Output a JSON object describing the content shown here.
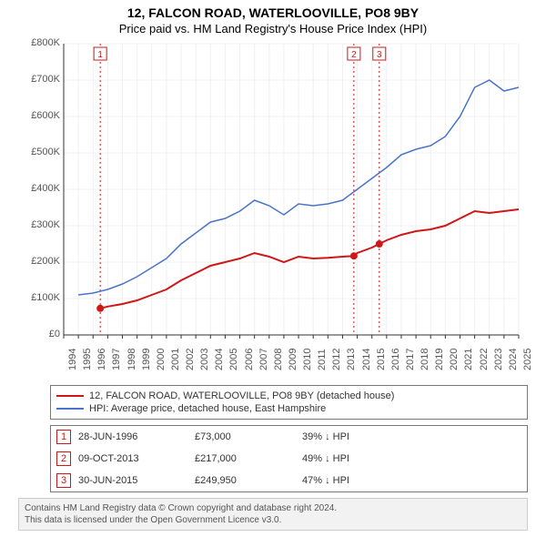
{
  "title_line1": "12, FALCON ROAD, WATERLOOVILLE, PO8 9BY",
  "title_line2": "Price paid vs. HM Land Registry's House Price Index (HPI)",
  "chart": {
    "type": "line",
    "background_color": "#ffffff",
    "grid_color": "#f0f0f0",
    "axis_color": "#333333",
    "xmin": 1994,
    "xmax": 2025,
    "ymin": 0,
    "ymax": 800000,
    "ytick_step": 100000,
    "yticks": [
      "£0",
      "£100K",
      "£200K",
      "£300K",
      "£400K",
      "£500K",
      "£600K",
      "£700K",
      "£800K"
    ],
    "xticks": [
      1994,
      1995,
      1996,
      1997,
      1998,
      1999,
      2000,
      2001,
      2002,
      2003,
      2004,
      2005,
      2006,
      2007,
      2008,
      2009,
      2010,
      2011,
      2012,
      2013,
      2014,
      2015,
      2016,
      2017,
      2018,
      2019,
      2020,
      2021,
      2022,
      2023,
      2024,
      2025
    ],
    "series": [
      {
        "name": "property",
        "label": "12, FALCON ROAD, WATERLOOVILLE, PO8 9BY (detached house)",
        "color": "#d01717",
        "line_width": 2,
        "data": [
          [
            1996.49,
            73000
          ],
          [
            1997,
            78000
          ],
          [
            1998,
            85000
          ],
          [
            1999,
            95000
          ],
          [
            2000,
            110000
          ],
          [
            2001,
            125000
          ],
          [
            2002,
            150000
          ],
          [
            2003,
            170000
          ],
          [
            2004,
            190000
          ],
          [
            2005,
            200000
          ],
          [
            2006,
            210000
          ],
          [
            2007,
            225000
          ],
          [
            2008,
            215000
          ],
          [
            2009,
            200000
          ],
          [
            2010,
            215000
          ],
          [
            2011,
            210000
          ],
          [
            2012,
            212000
          ],
          [
            2013,
            215000
          ],
          [
            2013.77,
            217000
          ],
          [
            2014,
            225000
          ],
          [
            2015,
            240000
          ],
          [
            2015.5,
            249950
          ],
          [
            2016,
            260000
          ],
          [
            2017,
            275000
          ],
          [
            2018,
            285000
          ],
          [
            2019,
            290000
          ],
          [
            2020,
            300000
          ],
          [
            2021,
            320000
          ],
          [
            2022,
            340000
          ],
          [
            2023,
            335000
          ],
          [
            2024,
            340000
          ],
          [
            2025,
            345000
          ]
        ]
      },
      {
        "name": "hpi",
        "label": "HPI: Average price, detached house, East Hampshire",
        "color": "#4a74c9",
        "line_width": 1.5,
        "data": [
          [
            1995,
            110000
          ],
          [
            1996,
            115000
          ],
          [
            1997,
            125000
          ],
          [
            1998,
            140000
          ],
          [
            1999,
            160000
          ],
          [
            2000,
            185000
          ],
          [
            2001,
            210000
          ],
          [
            2002,
            250000
          ],
          [
            2003,
            280000
          ],
          [
            2004,
            310000
          ],
          [
            2005,
            320000
          ],
          [
            2006,
            340000
          ],
          [
            2007,
            370000
          ],
          [
            2008,
            355000
          ],
          [
            2009,
            330000
          ],
          [
            2010,
            360000
          ],
          [
            2011,
            355000
          ],
          [
            2012,
            360000
          ],
          [
            2013,
            370000
          ],
          [
            2014,
            400000
          ],
          [
            2015,
            430000
          ],
          [
            2016,
            460000
          ],
          [
            2017,
            495000
          ],
          [
            2018,
            510000
          ],
          [
            2019,
            520000
          ],
          [
            2020,
            545000
          ],
          [
            2021,
            600000
          ],
          [
            2022,
            680000
          ],
          [
            2023,
            700000
          ],
          [
            2024,
            670000
          ],
          [
            2025,
            680000
          ]
        ]
      }
    ],
    "markers": [
      {
        "n": "1",
        "x": 1996.49,
        "y": 73000,
        "color": "#d01717"
      },
      {
        "n": "2",
        "x": 2013.77,
        "y": 217000,
        "color": "#d01717"
      },
      {
        "n": "3",
        "x": 2015.5,
        "y": 249950,
        "color": "#d01717"
      }
    ]
  },
  "legend": [
    {
      "color": "#d01717",
      "text": "12, FALCON ROAD, WATERLOOVILLE, PO8 9BY (detached house)"
    },
    {
      "color": "#4a74c9",
      "text": "HPI: Average price, detached house, East Hampshire"
    }
  ],
  "transactions": [
    {
      "n": "1",
      "color": "#d01717",
      "date": "28-JUN-1996",
      "price": "£73,000",
      "pct": "39% ↓ HPI"
    },
    {
      "n": "2",
      "color": "#d01717",
      "date": "09-OCT-2013",
      "price": "£217,000",
      "pct": "49% ↓ HPI"
    },
    {
      "n": "3",
      "color": "#d01717",
      "date": "30-JUN-2015",
      "price": "£249,950",
      "pct": "47% ↓ HPI"
    }
  ],
  "footer_line1": "Contains HM Land Registry data © Crown copyright and database right 2024.",
  "footer_line2": "This data is licensed under the Open Government Licence v3.0."
}
